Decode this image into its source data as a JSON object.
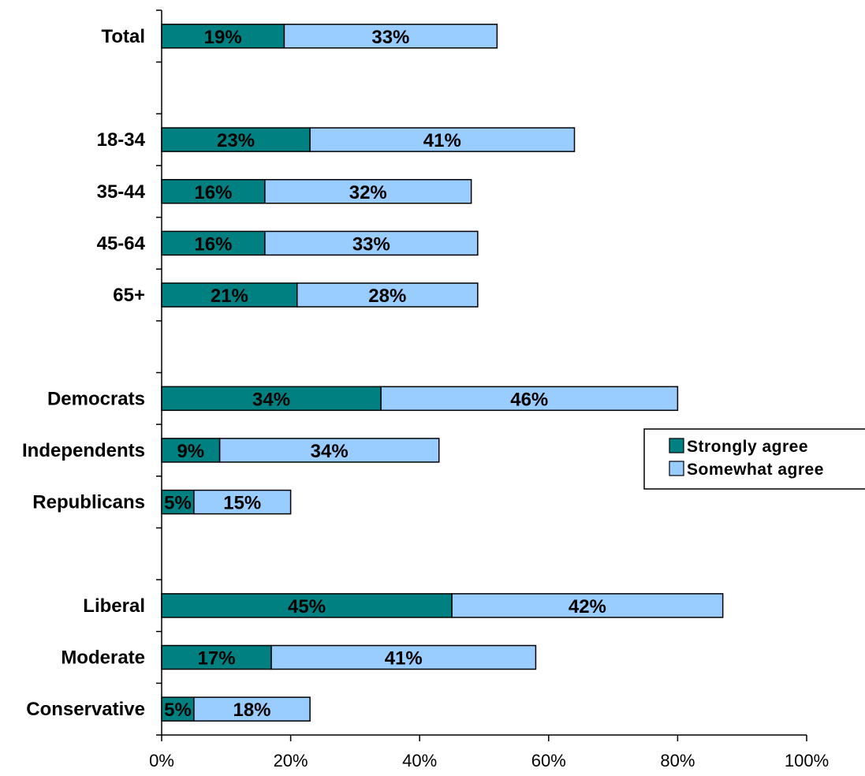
{
  "chart_data": {
    "type": "bar",
    "orientation": "horizontal",
    "stacked": true,
    "categories": [
      "Total",
      "",
      "18-34",
      "35-44",
      "45-64",
      "65+",
      "",
      "Democrats",
      "Independents",
      "Republicans",
      "",
      "Liberal",
      "Moderate",
      "Conservative"
    ],
    "series": [
      {
        "name": "Strongly agree",
        "color": "#008080",
        "values": [
          19,
          null,
          23,
          16,
          16,
          21,
          null,
          34,
          9,
          5,
          null,
          45,
          17,
          5
        ],
        "labels": [
          "19%",
          "",
          "23%",
          "16%",
          "16%",
          "21%",
          "",
          "34%",
          "9%",
          "5%",
          "",
          "45%",
          "17%",
          "5%"
        ]
      },
      {
        "name": "Somewhat agree",
        "color": "#99ccff",
        "values": [
          33,
          null,
          41,
          32,
          33,
          28,
          null,
          46,
          34,
          15,
          null,
          42,
          41,
          18
        ],
        "labels": [
          "33%",
          "",
          "41%",
          "32%",
          "33%",
          "28%",
          "",
          "46%",
          "34%",
          "15%",
          "",
          "42%",
          "41%",
          "18%"
        ]
      }
    ],
    "xlim": [
      0,
      100
    ],
    "x_ticks": [
      "0%",
      "20%",
      "40%",
      "60%",
      "80%",
      "100%"
    ],
    "grid": false,
    "legend": "right"
  }
}
